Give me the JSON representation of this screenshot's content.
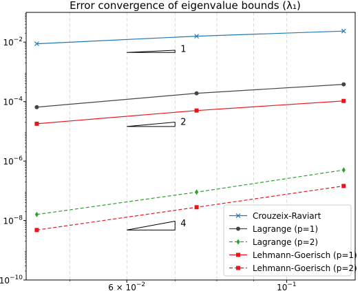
{
  "chart_data": {
    "type": "line",
    "title": "Error convergence of eigenvalue bounds (λ₁)",
    "xlabel": "",
    "ylabel": "",
    "x_scale": "log",
    "y_scale": "log",
    "xlim": [
      0.0435,
      0.1245
    ],
    "ylim": [
      1e-10,
      0.1
    ],
    "x_ticks": [
      {
        "value": 0.06,
        "label": "6 × 10⁻²"
      },
      {
        "value": 0.1,
        "label": "10⁻¹"
      }
    ],
    "y_ticks": [
      {
        "value": 0.01,
        "label": "10⁻²"
      },
      {
        "value": 0.0001,
        "label": "10⁻⁴"
      },
      {
        "value": 1e-06,
        "label": "10⁻⁶"
      },
      {
        "value": 1e-08,
        "label": "10⁻⁸"
      },
      {
        "value": 1e-10,
        "label": "10⁻¹⁰"
      }
    ],
    "x_minor_grid": [
      0.05,
      0.07,
      0.08,
      0.09
    ],
    "grid": "x-only dashed",
    "legend_position": "lower-right",
    "x": [
      0.045,
      0.075,
      0.12
    ],
    "series": [
      {
        "name": "Crouzeix-Raviart",
        "values": [
          0.0088,
          0.0158,
          0.0235
        ],
        "color": "#1f77b4",
        "linestyle": "solid",
        "marker": "x"
      },
      {
        "name": "Lagrange (p=1)",
        "values": [
          6.5e-05,
          0.00019,
          0.00038
        ],
        "color": "#444444",
        "linestyle": "solid",
        "marker": "circle"
      },
      {
        "name": "Lagrange (p=2)",
        "values": [
          1.6e-08,
          9e-08,
          5e-07
        ],
        "color": "#2ca02c",
        "linestyle": "dashed",
        "marker": "diamond"
      },
      {
        "name": "Lehmann-Goerisch (p=1)",
        "values": [
          1.8e-05,
          5e-05,
          0.000105
        ],
        "color": "#e8161b",
        "linestyle": "solid",
        "marker": "square"
      },
      {
        "name": "Lehmann-Goerisch (p=2)",
        "values": [
          4.8e-09,
          2.8e-08,
          1.45e-07
        ],
        "color": "#e8161b",
        "linestyle": "dashed",
        "marker": "square"
      }
    ],
    "slope_triangles": [
      {
        "label": "1",
        "x_start": 0.06,
        "x_end": 0.07,
        "y_base": 0.0045
      },
      {
        "label": "2",
        "x_start": 0.06,
        "x_end": 0.07,
        "y_base": 1.45e-05
      },
      {
        "label": "4",
        "x_start": 0.06,
        "x_end": 0.07,
        "y_base": 4.8e-09
      }
    ]
  }
}
